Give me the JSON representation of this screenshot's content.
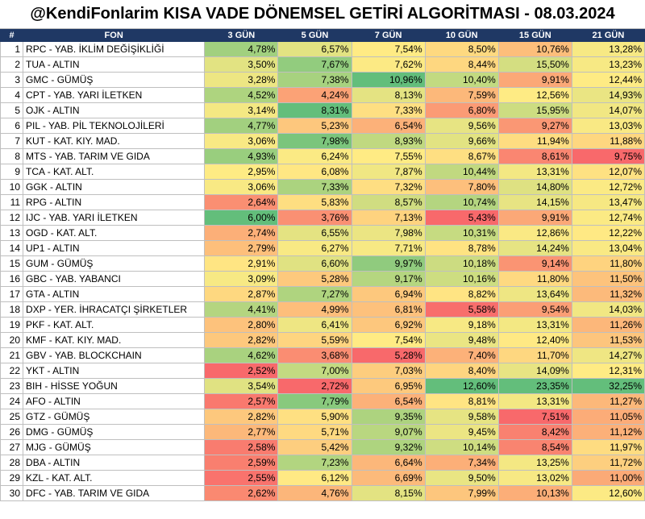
{
  "title": "@KendiFonlarim KISA VADE DÖNEMSEL GETİRİ ALGORİTMASI - 08.03.2024",
  "headers": [
    "#",
    "FON",
    "3 GÜN",
    "5 GÜN",
    "7 GÜN",
    "10 GÜN",
    "15 GÜN",
    "21 GÜN"
  ],
  "rows": [
    {
      "n": "1",
      "fund": "RPC - YAB. İKLİM DEĞİŞİKLİĞİ",
      "values": [
        "4,78%",
        "6,57%",
        "7,54%",
        "8,50%",
        "10,76%",
        "13,28%"
      ]
    },
    {
      "n": "2",
      "fund": "TUA - ALTIN",
      "values": [
        "3,50%",
        "7,67%",
        "7,62%",
        "8,44%",
        "15,50%",
        "13,23%"
      ]
    },
    {
      "n": "3",
      "fund": "GMC - GÜMÜŞ",
      "values": [
        "3,28%",
        "7,38%",
        "10,96%",
        "10,40%",
        "9,91%",
        "12,44%"
      ]
    },
    {
      "n": "4",
      "fund": "CPT - YAB. YARI İLETKEN",
      "values": [
        "4,52%",
        "4,24%",
        "8,13%",
        "7,59%",
        "12,56%",
        "14,93%"
      ]
    },
    {
      "n": "5",
      "fund": "OJK - ALTIN",
      "values": [
        "3,14%",
        "8,31%",
        "7,33%",
        "6,80%",
        "15,95%",
        "14,07%"
      ]
    },
    {
      "n": "6",
      "fund": "PIL - YAB. PİL TEKNOLOJİLERİ",
      "values": [
        "4,77%",
        "5,23%",
        "6,54%",
        "9,56%",
        "9,27%",
        "13,03%"
      ]
    },
    {
      "n": "7",
      "fund": "KUT - KAT. KIY. MAD.",
      "values": [
        "3,06%",
        "7,98%",
        "8,93%",
        "9,66%",
        "11,94%",
        "11,88%"
      ]
    },
    {
      "n": "8",
      "fund": "MTS - YAB. TARIM VE GIDA",
      "values": [
        "4,93%",
        "6,24%",
        "7,55%",
        "8,67%",
        "8,61%",
        "9,75%"
      ]
    },
    {
      "n": "9",
      "fund": "TCA - KAT. ALT.",
      "values": [
        "2,95%",
        "6,08%",
        "7,87%",
        "10,44%",
        "13,31%",
        "12,07%"
      ]
    },
    {
      "n": "10",
      "fund": "GGK - ALTIN",
      "values": [
        "3,06%",
        "7,33%",
        "7,32%",
        "7,80%",
        "14,80%",
        "12,72%"
      ]
    },
    {
      "n": "11",
      "fund": "RPG - ALTIN",
      "values": [
        "2,64%",
        "5,83%",
        "8,57%",
        "10,74%",
        "14,15%",
        "13,47%"
      ]
    },
    {
      "n": "12",
      "fund": "IJC - YAB. YARI İLETKEN",
      "values": [
        "6,00%",
        "3,76%",
        "7,13%",
        "5,43%",
        "9,91%",
        "12,74%"
      ]
    },
    {
      "n": "13",
      "fund": "OGD - KAT. ALT.",
      "values": [
        "2,74%",
        "6,55%",
        "7,98%",
        "10,31%",
        "12,86%",
        "12,22%"
      ]
    },
    {
      "n": "14",
      "fund": "UP1 - ALTIN",
      "values": [
        "2,79%",
        "6,27%",
        "7,71%",
        "8,78%",
        "14,24%",
        "13,04%"
      ]
    },
    {
      "n": "15",
      "fund": "GUM - GÜMÜŞ",
      "values": [
        "2,91%",
        "6,60%",
        "9,97%",
        "10,18%",
        "9,14%",
        "11,80%"
      ]
    },
    {
      "n": "16",
      "fund": "GBC - YAB. YABANCI",
      "values": [
        "3,09%",
        "5,28%",
        "9,17%",
        "10,16%",
        "11,80%",
        "11,50%"
      ]
    },
    {
      "n": "17",
      "fund": "GTA - ALTIN",
      "values": [
        "2,87%",
        "7,27%",
        "6,94%",
        "8,82%",
        "13,64%",
        "11,32%"
      ]
    },
    {
      "n": "18",
      "fund": "DXP - YER. İHRACATÇI ŞİRKETLER",
      "values": [
        "4,41%",
        "4,99%",
        "6,81%",
        "5,58%",
        "9,54%",
        "14,03%"
      ]
    },
    {
      "n": "19",
      "fund": "PKF - KAT. ALT.",
      "values": [
        "2,80%",
        "6,41%",
        "6,92%",
        "9,18%",
        "13,31%",
        "11,26%"
      ]
    },
    {
      "n": "20",
      "fund": "KMF - KAT. KIY. MAD.",
      "values": [
        "2,82%",
        "5,59%",
        "7,54%",
        "9,48%",
        "12,40%",
        "11,53%"
      ]
    },
    {
      "n": "21",
      "fund": "GBV - YAB. BLOCKCHAIN",
      "values": [
        "4,62%",
        "3,68%",
        "5,28%",
        "7,40%",
        "11,70%",
        "14,27%"
      ]
    },
    {
      "n": "22",
      "fund": "YKT - ALTIN",
      "values": [
        "2,52%",
        "7,00%",
        "7,03%",
        "8,40%",
        "14,09%",
        "12,31%"
      ]
    },
    {
      "n": "23",
      "fund": "BIH - HİSSE YOĞUN",
      "values": [
        "3,54%",
        "2,72%",
        "6,95%",
        "12,60%",
        "23,35%",
        "32,25%"
      ]
    },
    {
      "n": "24",
      "fund": "AFO - ALTIN",
      "values": [
        "2,57%",
        "7,79%",
        "6,54%",
        "8,81%",
        "13,31%",
        "11,27%"
      ]
    },
    {
      "n": "25",
      "fund": "GTZ - GÜMÜŞ",
      "values": [
        "2,82%",
        "5,90%",
        "9,35%",
        "9,58%",
        "7,51%",
        "11,05%"
      ]
    },
    {
      "n": "26",
      "fund": "DMG - GÜMÜŞ",
      "values": [
        "2,77%",
        "5,71%",
        "9,07%",
        "9,45%",
        "8,42%",
        "11,12%"
      ]
    },
    {
      "n": "27",
      "fund": "MJG - GÜMÜŞ",
      "values": [
        "2,58%",
        "5,42%",
        "9,32%",
        "10,14%",
        "8,54%",
        "11,97%"
      ]
    },
    {
      "n": "28",
      "fund": "DBA - ALTIN",
      "values": [
        "2,59%",
        "7,23%",
        "6,64%",
        "7,34%",
        "13,25%",
        "11,72%"
      ]
    },
    {
      "n": "29",
      "fund": "KZL - KAT. ALT.",
      "values": [
        "2,55%",
        "6,12%",
        "6,69%",
        "9,50%",
        "13,02%",
        "11,00%"
      ]
    },
    {
      "n": "30",
      "fund": "DFC - YAB. TARIM VE GIDA",
      "values": [
        "2,62%",
        "4,76%",
        "8,15%",
        "7,99%",
        "10,13%",
        "12,60%"
      ]
    }
  ],
  "colors": {
    "header_bg": "#1f3864",
    "header_text": "#ffffff",
    "scale_low": "#f8696b",
    "scale_mid": "#ffeb84",
    "scale_high": "#63be7b"
  }
}
